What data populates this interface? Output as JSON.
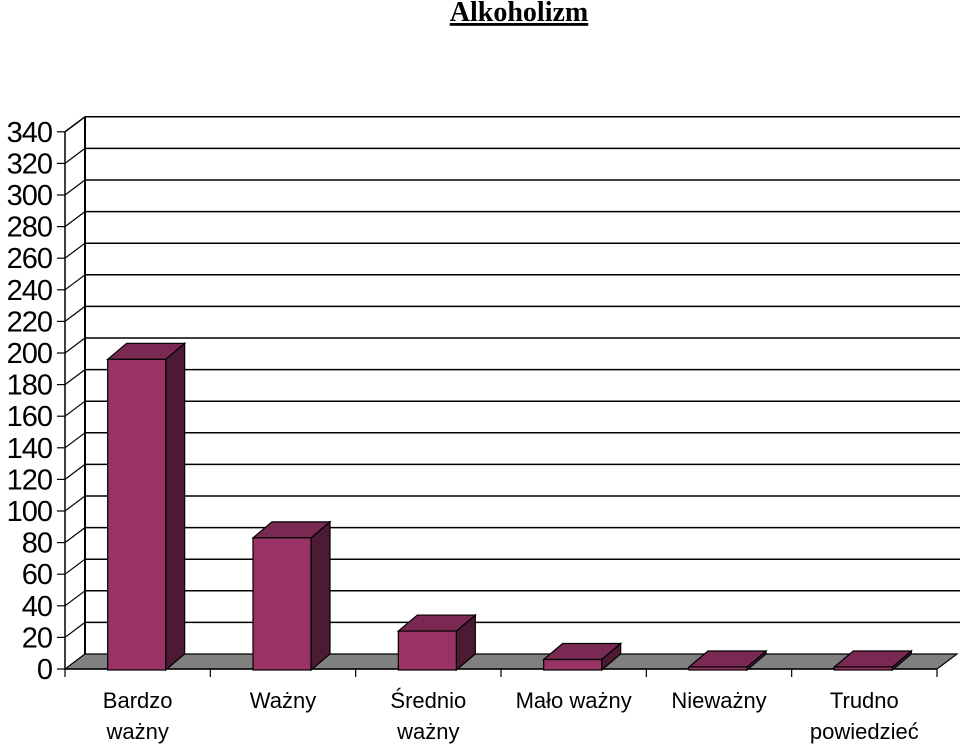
{
  "chart_data": {
    "type": "bar",
    "title": "Alkoholizm",
    "categories": [
      [
        "Bardzo",
        "ważny"
      ],
      [
        "Ważny"
      ],
      [
        "Średnio",
        "ważny"
      ],
      [
        "Mało ważny"
      ],
      [
        "Nieważny"
      ],
      [
        "Trudno",
        "powiedzieć"
      ]
    ],
    "values": [
      196,
      83,
      24,
      6,
      0,
      0
    ],
    "ylim": [
      0,
      340
    ],
    "yticks": [
      0,
      20,
      40,
      60,
      80,
      100,
      120,
      140,
      160,
      180,
      200,
      220,
      240,
      260,
      280,
      300,
      320,
      340
    ],
    "xlabel": "",
    "ylabel": "",
    "grid": true,
    "legend": "none",
    "colors": {
      "bar_front": "#993366",
      "bar_top": "#7a2a52",
      "bar_side": "#4d1a33",
      "floor": "#808080",
      "gridline": "#000000"
    }
  }
}
